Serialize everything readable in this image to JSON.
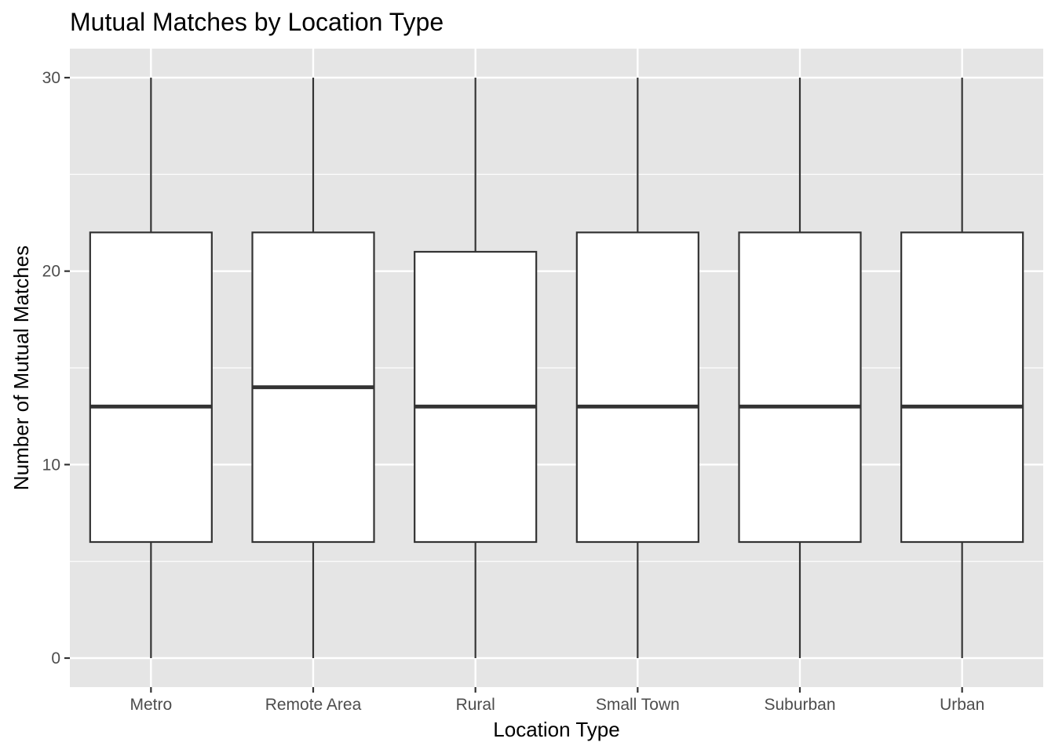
{
  "chart_data": {
    "type": "boxplot",
    "title": "Mutual Matches by Location Type",
    "xlabel": "Location Type",
    "ylabel": "Number of Mutual Matches",
    "categories": [
      "Metro",
      "Remote Area",
      "Rural",
      "Small Town",
      "Suburban",
      "Urban"
    ],
    "boxes": [
      {
        "category": "Metro",
        "min": 0,
        "q1": 6,
        "median": 13,
        "q3": 22,
        "max": 30
      },
      {
        "category": "Remote Area",
        "min": 0,
        "q1": 6,
        "median": 14,
        "q3": 22,
        "max": 30
      },
      {
        "category": "Rural",
        "min": 0,
        "q1": 6,
        "median": 13,
        "q3": 21,
        "max": 30
      },
      {
        "category": "Small Town",
        "min": 0,
        "q1": 6,
        "median": 13,
        "q3": 22,
        "max": 30
      },
      {
        "category": "Suburban",
        "min": 0,
        "q1": 6,
        "median": 13,
        "q3": 22,
        "max": 30
      },
      {
        "category": "Urban",
        "min": 0,
        "q1": 6,
        "median": 13,
        "q3": 22,
        "max": 30
      }
    ],
    "yticks": [
      0,
      10,
      20,
      30
    ],
    "ylim": [
      -1.5,
      31.5
    ],
    "grid": true,
    "colors": {
      "panel_background": "#e5e5e5",
      "grid_line": "#ffffff",
      "box_fill": "#ffffff",
      "box_stroke": "#333333",
      "tick_label": "#4d4d4d",
      "tick_mark": "#333333"
    }
  }
}
